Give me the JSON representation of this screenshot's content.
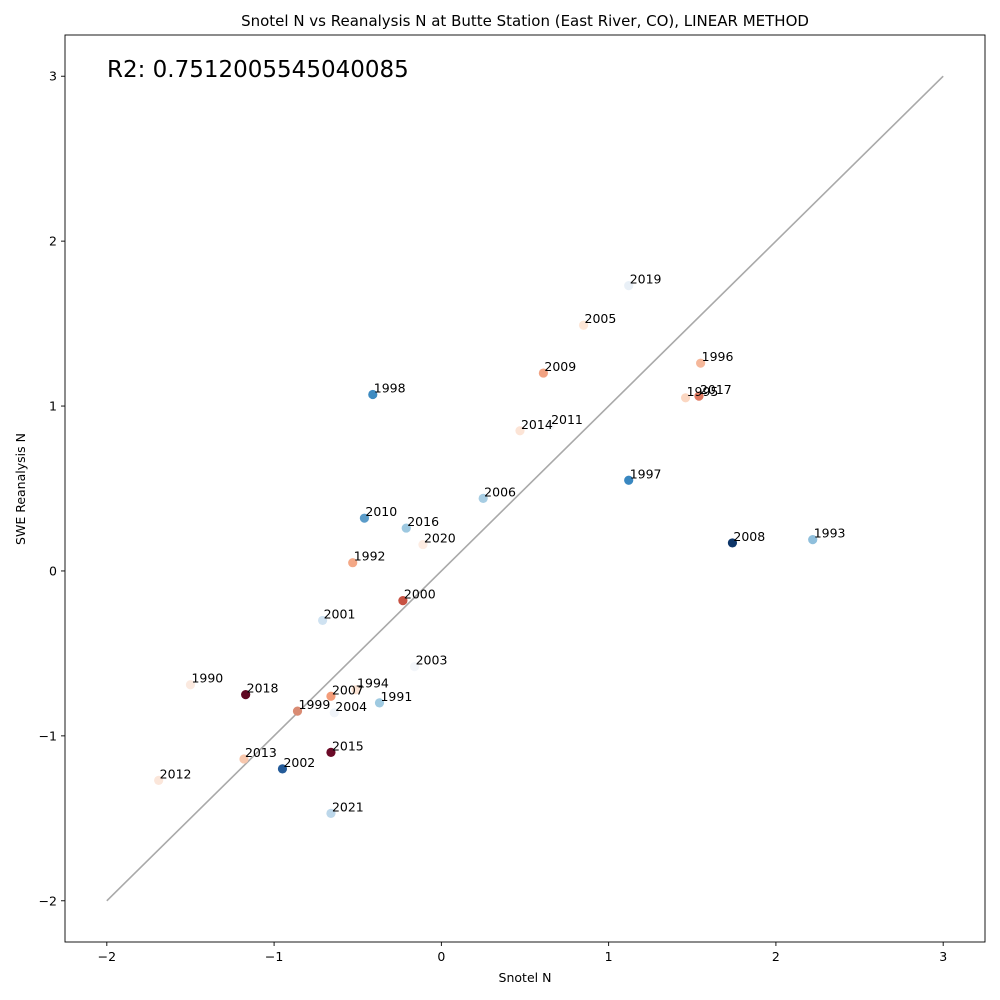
{
  "chart_data": {
    "type": "scatter",
    "title": "Snotel N vs Reanalysis N at Butte Station (East River, CO), LINEAR METHOD",
    "xlabel": "Snotel N",
    "ylabel": "SWE Reanalysis N",
    "annotation": "R2: 0.7512005545040085",
    "xlim": [
      -2.25,
      3.25
    ],
    "ylim": [
      -2.25,
      3.25
    ],
    "xticks": [
      -2,
      -1,
      0,
      1,
      2,
      3
    ],
    "yticks": [
      -2,
      -1,
      0,
      1,
      2,
      3
    ],
    "xtick_labels": [
      "−2",
      "−1",
      "0",
      "1",
      "2",
      "3"
    ],
    "ytick_labels": [
      "−2",
      "−1",
      "0",
      "1",
      "2",
      "3"
    ],
    "grid": false,
    "reference_line": {
      "x": [
        -2,
        3
      ],
      "y": [
        -2,
        3
      ],
      "color": "#a9a9a9"
    },
    "points": [
      {
        "label": "1990",
        "x": -1.5,
        "y": -0.69,
        "color": "#fbe9df"
      },
      {
        "label": "1991",
        "x": -0.37,
        "y": -0.8,
        "color": "#9fcae1"
      },
      {
        "label": "1992",
        "x": -0.53,
        "y": 0.05,
        "color": "#f4a886"
      },
      {
        "label": "1993",
        "x": 2.22,
        "y": 0.19,
        "color": "#8fbfdc"
      },
      {
        "label": "1994",
        "x": -0.51,
        "y": -0.72,
        "color": "#fbe3d4"
      },
      {
        "label": "1995",
        "x": 1.46,
        "y": 1.05,
        "color": "#fbd7c2"
      },
      {
        "label": "1996",
        "x": 1.55,
        "y": 1.26,
        "color": "#f5b79a"
      },
      {
        "label": "1997",
        "x": 1.12,
        "y": 0.55,
        "color": "#3987c0"
      },
      {
        "label": "1998",
        "x": -0.41,
        "y": 1.07,
        "color": "#3e8bc1"
      },
      {
        "label": "1999",
        "x": -0.86,
        "y": -0.85,
        "color": "#d98b73"
      },
      {
        "label": "2000",
        "x": -0.23,
        "y": -0.18,
        "color": "#c75243"
      },
      {
        "label": "2001",
        "x": -0.71,
        "y": -0.3,
        "color": "#cfe2f1"
      },
      {
        "label": "2002",
        "x": -0.95,
        "y": -1.2,
        "color": "#245b99"
      },
      {
        "label": "2003",
        "x": -0.16,
        "y": -0.58,
        "color": "#f3f6fa"
      },
      {
        "label": "2004",
        "x": -0.64,
        "y": -0.86,
        "color": "#eff3f8"
      },
      {
        "label": "2005",
        "x": 0.85,
        "y": 1.49,
        "color": "#fde6d6"
      },
      {
        "label": "2006",
        "x": 0.25,
        "y": 0.44,
        "color": "#a7cde3"
      },
      {
        "label": "2007",
        "x": -0.66,
        "y": -0.76,
        "color": "#f39c79"
      },
      {
        "label": "2008",
        "x": 1.74,
        "y": 0.17,
        "color": "#0e3669"
      },
      {
        "label": "2009",
        "x": 0.61,
        "y": 1.2,
        "color": "#f1a282"
      },
      {
        "label": "2010",
        "x": -0.46,
        "y": 0.32,
        "color": "#5b9cc9"
      },
      {
        "label": "2011",
        "x": 0.65,
        "y": 0.88,
        "color": "#f6f8fb"
      },
      {
        "label": "2012",
        "x": -1.69,
        "y": -1.27,
        "color": "#fbe6da"
      },
      {
        "label": "2013",
        "x": -1.18,
        "y": -1.14,
        "color": "#f8c8ae"
      },
      {
        "label": "2014",
        "x": 0.47,
        "y": 0.85,
        "color": "#fce4d6"
      },
      {
        "label": "2015",
        "x": -0.66,
        "y": -1.1,
        "color": "#6b0a27"
      },
      {
        "label": "2016",
        "x": -0.21,
        "y": 0.26,
        "color": "#9dc8e0"
      },
      {
        "label": "2017",
        "x": 1.54,
        "y": 1.06,
        "color": "#e07a62"
      },
      {
        "label": "2018",
        "x": -1.17,
        "y": -0.75,
        "color": "#5f0822"
      },
      {
        "label": "2019",
        "x": 1.12,
        "y": 1.73,
        "color": "#e9f0f7"
      },
      {
        "label": "2020",
        "x": -0.11,
        "y": 0.16,
        "color": "#fdece2"
      },
      {
        "label": "2021",
        "x": -0.66,
        "y": -1.47,
        "color": "#bcd7ea"
      }
    ]
  }
}
